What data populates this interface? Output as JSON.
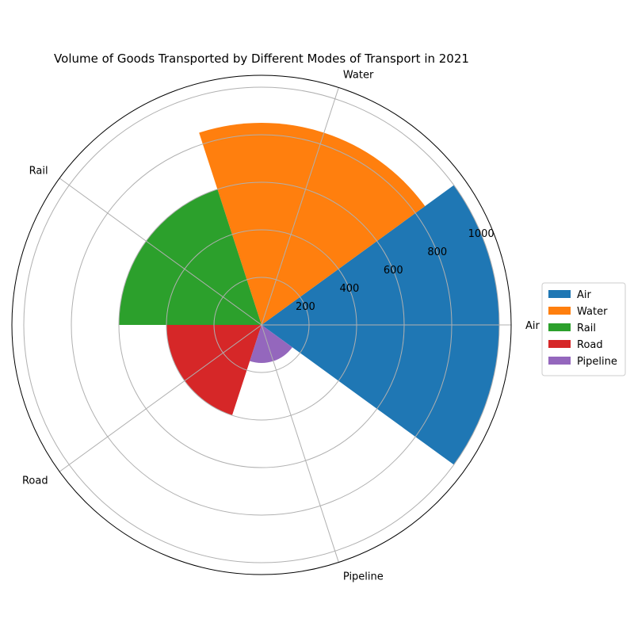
{
  "chart_data": {
    "type": "polar-bar",
    "title": "Volume of Goods Transported by Different Modes of Transport in 2021",
    "categories": [
      "Air",
      "Water",
      "Rail",
      "Road",
      "Pipeline"
    ],
    "values": [
      1000,
      850,
      600,
      400,
      160
    ],
    "series": [
      {
        "name": "Air",
        "value": 1000,
        "color": "#1f77b4"
      },
      {
        "name": "Water",
        "value": 850,
        "color": "#ff7f0e"
      },
      {
        "name": "Rail",
        "value": 600,
        "color": "#2ca02c"
      },
      {
        "name": "Road",
        "value": 400,
        "color": "#d62728"
      },
      {
        "name": "Pipeline",
        "value": 160,
        "color": "#9467bd"
      }
    ],
    "radial_ticks": [
      "200",
      "400",
      "600",
      "800",
      "1000"
    ],
    "rlim": [
      0,
      1000
    ],
    "grid": true,
    "legend": "right"
  }
}
